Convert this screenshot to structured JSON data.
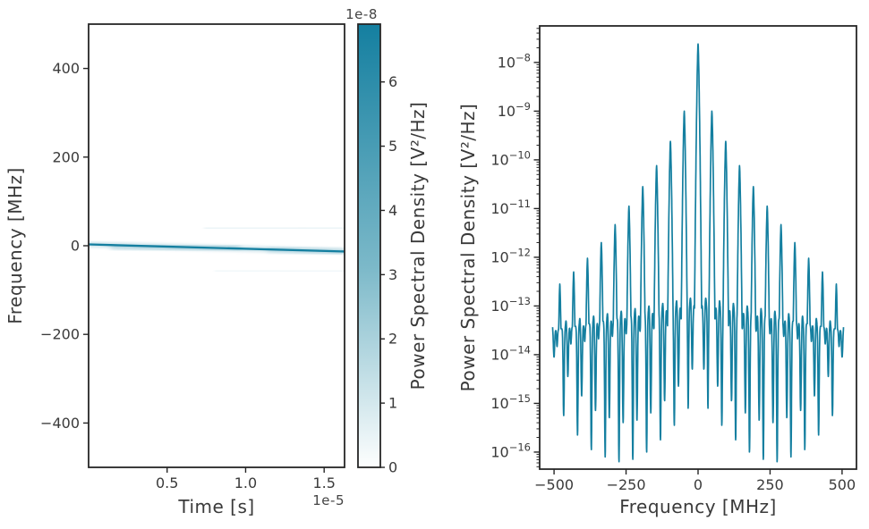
{
  "figure": {
    "background": "#ffffff",
    "accent_color": "#147fa0",
    "spine_color": "#262626",
    "tick_text_color": "#3a3a3a"
  },
  "chart_data": [
    {
      "type": "heatmap",
      "title": "",
      "xlabel": "Time [s]",
      "ylabel": "Frequency [MHz]",
      "x_offset_text": "1e-5",
      "xtick_labels": [
        "0.5",
        "1.0",
        "1.5"
      ],
      "xtick_values_s": [
        5e-06,
        1e-05,
        1.5e-05
      ],
      "xlim_s": [
        0,
        1.63e-05
      ],
      "ytick_labels": [
        "400",
        "200",
        "0",
        "−200",
        "−400"
      ],
      "ytick_values": [
        400,
        200,
        0,
        -200,
        -400
      ],
      "ylim_mhz": [
        -500,
        500
      ],
      "grid": false,
      "colorbar": {
        "label": "Power Spectral Density [V²/Hz]",
        "offset_text": "1e-8",
        "tick_labels": [
          "0",
          "1",
          "2",
          "3",
          "4",
          "5",
          "6"
        ],
        "tick_values": [
          0,
          1,
          2,
          3,
          4,
          5,
          6
        ],
        "vmax_in_1e8_units": 6.9,
        "cmap_low": "#ffffff",
        "cmap_high": "#147fa0"
      },
      "signal": {
        "kind": "chirp",
        "t_start_s": 0,
        "t_end_s": 1.63e-05,
        "f_start_mhz": 3,
        "f_end_mhz": -13,
        "peak_psd_v2hz": 6.9e-08,
        "faint_sidebands_mhz": [
          39,
          -56
        ]
      }
    },
    {
      "type": "line",
      "title": "",
      "xlabel": "Frequency [MHz]",
      "ylabel": "Power Spectral Density [V²/Hz]",
      "xtick_labels": [
        "−500",
        "−250",
        "0",
        "250",
        "500"
      ],
      "xtick_values": [
        -500,
        -250,
        0,
        250,
        500
      ],
      "xlim_mhz": [
        -550,
        550
      ],
      "yscale": "log",
      "ytick_exponents": [
        -8,
        -9,
        -10,
        -11,
        -12,
        -13,
        -14,
        -15,
        -16
      ],
      "ylim_log10": [
        -16.35,
        -7.25
      ],
      "grid": false,
      "legend": false,
      "line_color": "#147fa0",
      "f_range_mhz": [
        -505,
        505
      ],
      "peak_spacing_mhz": 48,
      "peak_log10_by_order": [
        -7.62,
        -9.0,
        -9.62,
        -10.12,
        -10.55,
        -10.95,
        -11.33,
        -11.7,
        -12.02,
        -12.3,
        -12.55,
        -12.75
      ],
      "valley_dip_log10_by_interval": [
        -15.1,
        -15.45,
        -15.75,
        -16.0,
        -16.15,
        -16.2,
        -16.1,
        -15.95,
        -15.65,
        -15.25,
        -14.85
      ],
      "floor_log10_center": -12.95,
      "floor_log10_edge": -13.5,
      "center_peak_psd_v2hz": 2.4e-08
    }
  ]
}
